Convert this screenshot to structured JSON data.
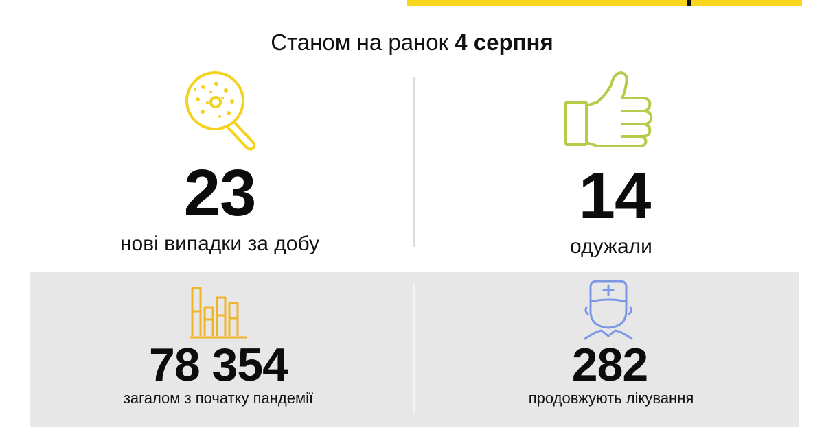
{
  "header": {
    "prefix": "Станом на ранок",
    "date": "4 серпня"
  },
  "stats": {
    "new_cases": {
      "value": "23",
      "label": "нові випадки за добу",
      "icon": "magnifier-virus-icon",
      "color": "#f5d21e"
    },
    "recovered": {
      "value": "14",
      "label": "одужали",
      "icon": "thumbs-up-icon",
      "color": "#b5cc4a"
    },
    "total": {
      "value": "78 354",
      "label": "загалом з початку пандемії",
      "icon": "bar-chart-icon",
      "color": "#f0b429"
    },
    "treatment": {
      "value": "282",
      "label": "продовжують лікування",
      "icon": "doctor-icon",
      "color": "#7b97e6"
    }
  },
  "colors": {
    "accent_yellow": "#f9d51c",
    "panel_gray": "#e7e7e7"
  }
}
